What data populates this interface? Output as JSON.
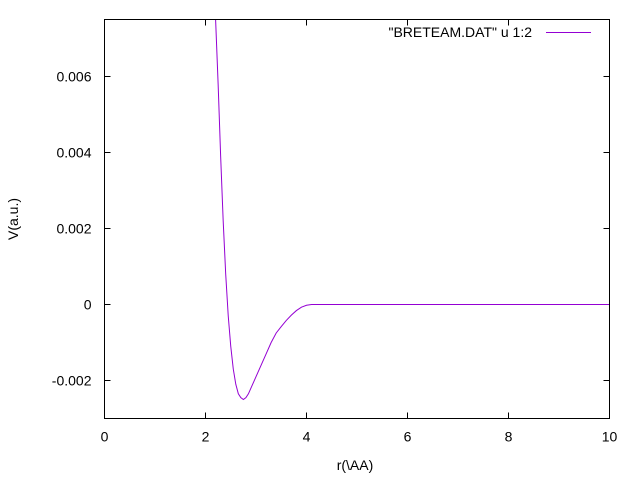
{
  "chart_data": {
    "type": "line",
    "title": "",
    "xlabel": "r(\\AA)",
    "ylabel": "V(a.u.)",
    "xlim": [
      0,
      10
    ],
    "ylim": [
      -0.003,
      0.0075
    ],
    "xticks": [
      0,
      2,
      4,
      6,
      8,
      10
    ],
    "xtick_labels": [
      "0",
      "2",
      "4",
      "6",
      "8",
      "10"
    ],
    "yticks": [
      -0.002,
      0,
      0.002,
      0.004,
      0.006
    ],
    "ytick_labels": [
      "-0.002",
      "0",
      "0.002",
      "0.004",
      "0.006"
    ],
    "grid": false,
    "legend_position": "top-right",
    "series": [
      {
        "name": "\"BRETEAM.DAT\" u 1:2",
        "color": "#9400d3",
        "x": [
          2.2,
          2.25,
          2.3,
          2.35,
          2.4,
          2.45,
          2.5,
          2.55,
          2.6,
          2.65,
          2.7,
          2.75,
          2.8,
          2.85,
          2.9,
          3.0,
          3.1,
          3.2,
          3.3,
          3.4,
          3.5,
          3.6,
          3.7,
          3.8,
          3.9,
          4.0,
          4.1,
          4.2,
          5.0,
          6.0,
          7.0,
          8.0,
          9.0,
          10.0
        ],
        "y": [
          0.0075,
          0.0058,
          0.0039,
          0.0022,
          0.0008,
          -0.0003,
          -0.0011,
          -0.0017,
          -0.0021,
          -0.00235,
          -0.00245,
          -0.0025,
          -0.00245,
          -0.00235,
          -0.0022,
          -0.0019,
          -0.0016,
          -0.0013,
          -0.001,
          -0.00075,
          -0.00058,
          -0.00042,
          -0.00028,
          -0.00016,
          -7e-05,
          -2e-05,
          0.0,
          0.0,
          0.0,
          0.0,
          0.0,
          0.0,
          0.0,
          0.0
        ]
      }
    ]
  }
}
